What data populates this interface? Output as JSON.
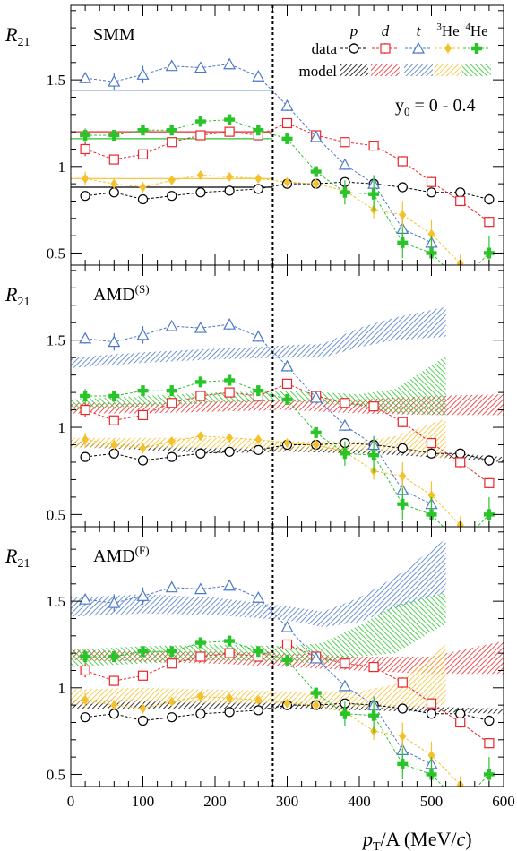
{
  "chart_data": {
    "type": "scatter",
    "xlabel": "p_T/A (MeV/c)",
    "xlabel_main": "p",
    "xlabel_sub": "T",
    "xlabel_rest": "/A (MeV/",
    "xlabel_c": "c",
    "xlabel_close": ")",
    "ylabel_main": "R",
    "ylabel_sub": "21",
    "xlim": [
      0,
      600
    ],
    "ylim": [
      0.43,
      1.93
    ],
    "x_ticks": [
      0,
      100,
      200,
      300,
      400,
      500,
      600
    ],
    "y_ticks": [
      0.5,
      1,
      1.5
    ],
    "cut_line_x": 280,
    "legend": {
      "row_data_label": "data",
      "row_model_label": "model",
      "species_labels": [
        {
          "key": "p",
          "sup": "",
          "text": "p",
          "italic": true
        },
        {
          "key": "d",
          "sup": "",
          "text": "d",
          "italic": true
        },
        {
          "key": "t",
          "sup": "",
          "text": "t",
          "italic": true
        },
        {
          "key": "3He",
          "sup": "3",
          "text": "He",
          "italic": false
        },
        {
          "key": "4He",
          "sup": "4",
          "text": "He",
          "italic": false
        }
      ]
    },
    "rapidity_label_main": "y",
    "rapidity_label_sub": "0",
    "rapidity_label_rest": " = 0 - 0.4",
    "colors": {
      "p": "#000000",
      "d": "#e8262b",
      "t": "#4a78c8",
      "3He": "#f5c02a",
      "4He": "#29c42a"
    },
    "series": [
      {
        "name": "p",
        "marker": "open-circle",
        "x": [
          20,
          60,
          100,
          140,
          180,
          220,
          260,
          300,
          340,
          380,
          420,
          460,
          500,
          540,
          580
        ],
        "y": [
          0.83,
          0.85,
          0.81,
          0.83,
          0.85,
          0.86,
          0.87,
          0.9,
          0.9,
          0.91,
          0.9,
          0.88,
          0.85,
          0.85,
          0.81
        ],
        "err": [
          0.025,
          0.02,
          0.02,
          0.015,
          0.015,
          0.015,
          0.015,
          0.015,
          0.02,
          0.02,
          0.03,
          0.02,
          0.02,
          0.02,
          0.03
        ]
      },
      {
        "name": "d",
        "marker": "open-square",
        "x": [
          20,
          60,
          100,
          140,
          180,
          220,
          260,
          300,
          340,
          380,
          420,
          460,
          500,
          540,
          580
        ],
        "y": [
          1.1,
          1.04,
          1.07,
          1.14,
          1.18,
          1.2,
          1.18,
          1.25,
          1.18,
          1.14,
          1.12,
          1.03,
          0.91,
          0.8,
          0.68
        ],
        "err": [
          0.04,
          0.02,
          0.02,
          0.02,
          0.02,
          0.02,
          0.02,
          0.02,
          0.02,
          0.02,
          0.02,
          0.03,
          0.03,
          0.03,
          0.03
        ]
      },
      {
        "name": "t",
        "marker": "open-triangle",
        "x": [
          20,
          60,
          100,
          140,
          180,
          220,
          260,
          300,
          340,
          380,
          420,
          460,
          500
        ],
        "y": [
          1.51,
          1.49,
          1.53,
          1.58,
          1.57,
          1.59,
          1.52,
          1.35,
          1.17,
          1.01,
          0.9,
          0.64,
          0.56
        ],
        "err": [
          0.03,
          0.05,
          0.05,
          0.02,
          0.02,
          0.03,
          0.03,
          0.03,
          0.03,
          0.03,
          0.05,
          0.07,
          0.07
        ]
      },
      {
        "name": "3He",
        "marker": "filled-diamond",
        "x": [
          20,
          60,
          100,
          140,
          180,
          220,
          260,
          300,
          340,
          380,
          420,
          460,
          500,
          540
        ],
        "y": [
          0.93,
          0.9,
          0.88,
          0.92,
          0.95,
          0.94,
          0.93,
          0.91,
          0.9,
          0.86,
          0.75,
          0.72,
          0.61,
          0.44
        ],
        "err": [
          0.04,
          0.03,
          0.03,
          0.02,
          0.02,
          0.02,
          0.02,
          0.02,
          0.03,
          0.04,
          0.05,
          0.08,
          0.08,
          0.05
        ]
      },
      {
        "name": "4He",
        "marker": "filled-cross",
        "x": [
          20,
          60,
          100,
          140,
          180,
          220,
          260,
          300,
          340,
          380,
          420,
          460,
          500,
          540,
          580
        ],
        "y": [
          1.18,
          1.18,
          1.21,
          1.21,
          1.26,
          1.27,
          1.21,
          1.16,
          0.97,
          0.85,
          0.84,
          0.56,
          0.5,
          0.33,
          0.5
        ],
        "err": [
          0.04,
          0.03,
          0.02,
          0.02,
          0.02,
          0.03,
          0.03,
          0.03,
          0.03,
          0.07,
          0.1,
          0.09,
          0.1,
          0.1,
          0.1
        ]
      }
    ],
    "panels": [
      {
        "label_main": "SMM",
        "label_sup": "",
        "model_type": "lines",
        "show_legend": true,
        "show_rapidity": true,
        "model_lines": [
          {
            "name": "p",
            "x_end": 280,
            "y": 0.88
          },
          {
            "name": "d",
            "x_end": 280,
            "y": 1.2
          },
          {
            "name": "t",
            "x_end": 280,
            "y": 1.44
          },
          {
            "name": "3He",
            "x_end": 280,
            "y": 0.93
          },
          {
            "name": "4He",
            "x_end": 280,
            "y": 1.16
          }
        ]
      },
      {
        "label_main": "AMD",
        "label_sup": "(S)",
        "model_type": "bands",
        "show_legend": false,
        "show_rapidity": false,
        "model_bands": [
          {
            "name": "p",
            "x": [
              0,
              100,
              200,
              300,
              400,
              500,
              600
            ],
            "lo": [
              0.89,
              0.87,
              0.85,
              0.86,
              0.85,
              0.83,
              0.8
            ],
            "hi": [
              0.92,
              0.9,
              0.88,
              0.89,
              0.88,
              0.86,
              0.83
            ]
          },
          {
            "name": "d",
            "x": [
              0,
              100,
              200,
              300,
              400,
              500,
              600
            ],
            "lo": [
              1.08,
              1.08,
              1.09,
              1.1,
              1.08,
              1.07,
              1.07
            ],
            "hi": [
              1.14,
              1.14,
              1.15,
              1.16,
              1.16,
              1.18,
              1.19
            ]
          },
          {
            "name": "t",
            "x": [
              0,
              100,
              200,
              300,
              350,
              400,
              450,
              520
            ],
            "lo": [
              1.34,
              1.37,
              1.39,
              1.4,
              1.4,
              1.46,
              1.5,
              1.52
            ],
            "hi": [
              1.4,
              1.43,
              1.45,
              1.47,
              1.48,
              1.57,
              1.63,
              1.69
            ]
          },
          {
            "name": "3He",
            "x": [
              0,
              100,
              200,
              300,
              400,
              450,
              520
            ],
            "lo": [
              0.88,
              0.88,
              0.88,
              0.87,
              0.87,
              0.86,
              0.82
            ],
            "hi": [
              0.94,
              0.94,
              0.94,
              0.92,
              0.92,
              0.95,
              1.05
            ]
          },
          {
            "name": "4He",
            "x": [
              0,
              100,
              200,
              300,
              400,
              450,
              520
            ],
            "lo": [
              1.1,
              1.12,
              1.14,
              1.15,
              1.12,
              1.08,
              1.07
            ],
            "hi": [
              1.16,
              1.18,
              1.2,
              1.21,
              1.19,
              1.22,
              1.41
            ]
          }
        ]
      },
      {
        "label_main": "AMD",
        "label_sup": "(F)",
        "model_type": "bands",
        "show_legend": false,
        "show_rapidity": false,
        "model_bands": [
          {
            "name": "p",
            "x": [
              0,
              100,
              200,
              300,
              400,
              500,
              600
            ],
            "lo": [
              0.88,
              0.88,
              0.88,
              0.88,
              0.87,
              0.86,
              0.85
            ],
            "hi": [
              0.93,
              0.93,
              0.92,
              0.92,
              0.91,
              0.89,
              0.88
            ]
          },
          {
            "name": "d",
            "x": [
              0,
              100,
              200,
              300,
              400,
              500,
              600
            ],
            "lo": [
              1.16,
              1.15,
              1.14,
              1.12,
              1.1,
              1.08,
              1.08
            ],
            "hi": [
              1.22,
              1.21,
              1.21,
              1.2,
              1.18,
              1.18,
              1.27
            ]
          },
          {
            "name": "t",
            "x": [
              0,
              100,
              200,
              300,
              350,
              400,
              450,
              520
            ],
            "lo": [
              1.41,
              1.43,
              1.42,
              1.39,
              1.35,
              1.38,
              1.46,
              1.55
            ],
            "hi": [
              1.52,
              1.54,
              1.52,
              1.47,
              1.44,
              1.52,
              1.64,
              1.86
            ]
          },
          {
            "name": "3He",
            "x": [
              0,
              100,
              200,
              300,
              400,
              450,
              520
            ],
            "lo": [
              0.9,
              0.92,
              0.91,
              0.91,
              0.89,
              0.88,
              0.9
            ],
            "hi": [
              0.99,
              1.0,
              0.99,
              0.98,
              0.98,
              1.02,
              1.25
            ]
          },
          {
            "name": "4He",
            "x": [
              0,
              100,
              200,
              300,
              350,
              400,
              450,
              520
            ],
            "lo": [
              1.12,
              1.14,
              1.16,
              1.15,
              1.14,
              1.18,
              1.2,
              1.37
            ],
            "hi": [
              1.22,
              1.24,
              1.25,
              1.24,
              1.26,
              1.36,
              1.48,
              1.55
            ]
          }
        ]
      }
    ]
  }
}
